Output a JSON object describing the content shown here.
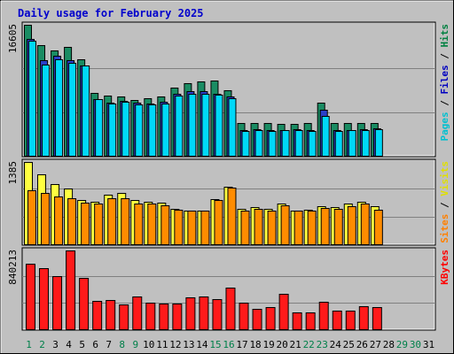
{
  "chart_data": {
    "type": "bar",
    "title": "Daily usage for February 2025",
    "categories": [
      "1",
      "2",
      "3",
      "4",
      "5",
      "6",
      "7",
      "8",
      "9",
      "10",
      "11",
      "12",
      "13",
      "14",
      "15",
      "16",
      "17",
      "18",
      "19",
      "20",
      "21",
      "22",
      "23",
      "24",
      "25",
      "26",
      "27",
      "28",
      "29",
      "30",
      "31"
    ],
    "weekend_days": [
      "1",
      "2",
      "8",
      "9",
      "15",
      "16",
      "22",
      "23",
      "29",
      "30"
    ],
    "panels": [
      {
        "id": "hits-files-pages",
        "max_label": "16605",
        "ymax": 16605,
        "legend": [
          {
            "text": "Pages",
            "color": "#00c0d0"
          },
          {
            "text": " / ",
            "color": "#000000"
          },
          {
            "text": "Files",
            "color": "#0000c0"
          },
          {
            "text": " / ",
            "color": "#000000"
          },
          {
            "text": "Hits",
            "color": "#008040"
          }
        ],
        "series": [
          {
            "name": "Hits",
            "color": "#1a8c63",
            "values": [
              16605,
              14000,
              13300,
              13800,
              12200,
              8000,
              7600,
              7500,
              7100,
              7300,
              7500,
              8600,
              9200,
              9400,
              9500,
              8300,
              4200,
              4100,
              4100,
              4000,
              4000,
              4100,
              6700,
              4200,
              4200,
              4100,
              4200,
              null,
              null,
              null,
              null
            ]
          },
          {
            "name": "Files",
            "color": "#2a3fc8",
            "values": [
              14800,
              12100,
              12700,
              12100,
              11500,
              7200,
              6700,
              7000,
              6700,
              6600,
              6900,
              7800,
              8200,
              8200,
              7900,
              7500,
              3300,
              3400,
              3300,
              3300,
              3400,
              3300,
              5800,
              3300,
              3300,
              3400,
              3500,
              null,
              null,
              null,
              null
            ]
          },
          {
            "name": "Pages",
            "color": "#00d8f8",
            "values": [
              14600,
              11600,
              12200,
              11800,
              11400,
              7200,
              6600,
              6800,
              6500,
              6500,
              6600,
              7600,
              7800,
              7800,
              7700,
              7300,
              3100,
              3300,
              3100,
              3200,
              3200,
              3100,
              5000,
              3100,
              3200,
              3200,
              3400,
              null,
              null,
              null,
              null
            ]
          }
        ]
      },
      {
        "id": "visits-sites",
        "max_label": "1385",
        "ymax": 1385,
        "legend": [
          {
            "text": "Sites",
            "color": "#ff8000"
          },
          {
            "text": " / ",
            "color": "#000000"
          },
          {
            "text": "Visits",
            "color": "#e0e000"
          }
        ],
        "series": [
          {
            "name": "Visits",
            "color": "#ffff40",
            "values": [
              1385,
              1180,
              1020,
              940,
              740,
              720,
              840,
              860,
              740,
              710,
              700,
              600,
              570,
              570,
              760,
              970,
              590,
              620,
              590,
              690,
              570,
              580,
              640,
              620,
              680,
              710,
              640,
              null,
              null,
              null,
              null
            ]
          },
          {
            "name": "Sites",
            "color": "#ff8c00",
            "values": [
              910,
              860,
              800,
              780,
              700,
              680,
              770,
              770,
              680,
              680,
              650,
              580,
              560,
              560,
              750,
              960,
              560,
              590,
              560,
              660,
              560,
              560,
              610,
              600,
              640,
              680,
              580,
              null,
              null,
              null,
              null
            ]
          }
        ]
      },
      {
        "id": "kbytes",
        "max_label": "840213",
        "ymax": 840213,
        "legend": [
          {
            "text": "KBytes",
            "color": "#ff0000"
          }
        ],
        "series": [
          {
            "name": "KBytes",
            "color": "#ff1a1a",
            "values": [
              700000,
              650000,
              570000,
              840213,
              550000,
              300000,
              310000,
              260000,
              350000,
              280000,
              270000,
              270000,
              340000,
              350000,
              320000,
              440000,
              280000,
              220000,
              240000,
              380000,
              180000,
              180000,
              290000,
              200000,
              200000,
              250000,
              240000,
              null,
              null,
              null,
              null
            ]
          }
        ]
      }
    ]
  }
}
